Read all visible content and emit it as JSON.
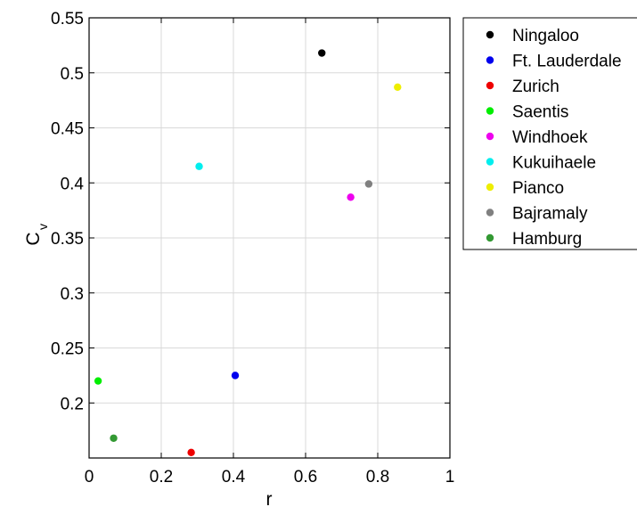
{
  "chart_data": {
    "type": "scatter",
    "xlabel": "r",
    "ylabel": "C",
    "ylabel_subscript": "v",
    "xlim": [
      0,
      1
    ],
    "ylim": [
      0.15,
      0.55
    ],
    "grid": true,
    "legend_position": "outside-right-top",
    "x_ticks": [
      "0",
      "0.2",
      "0.4",
      "0.6",
      "0.8",
      "1"
    ],
    "y_ticks": [
      "0.2",
      "0.25",
      "0.3",
      "0.35",
      "0.4",
      "0.45",
      "0.5",
      "0.55"
    ],
    "series": [
      {
        "name": "Ningaloo",
        "color": "#000000",
        "x": 0.645,
        "y": 0.518
      },
      {
        "name": "Ft. Lauderdale",
        "color": "#0000ee",
        "x": 0.405,
        "y": 0.225
      },
      {
        "name": "Zurich",
        "color": "#ee0000",
        "x": 0.283,
        "y": 0.155
      },
      {
        "name": "Saentis",
        "color": "#00ee00",
        "x": 0.025,
        "y": 0.22
      },
      {
        "name": "Windhoek",
        "color": "#ee00ee",
        "x": 0.725,
        "y": 0.387
      },
      {
        "name": "Kukuihaele",
        "color": "#00eeee",
        "x": 0.305,
        "y": 0.415
      },
      {
        "name": "Pianco",
        "color": "#eeee00",
        "x": 0.855,
        "y": 0.487
      },
      {
        "name": "Bajramaly",
        "color": "#808080",
        "x": 0.775,
        "y": 0.399
      },
      {
        "name": "Hamburg",
        "color": "#339933",
        "x": 0.068,
        "y": 0.168
      }
    ]
  }
}
